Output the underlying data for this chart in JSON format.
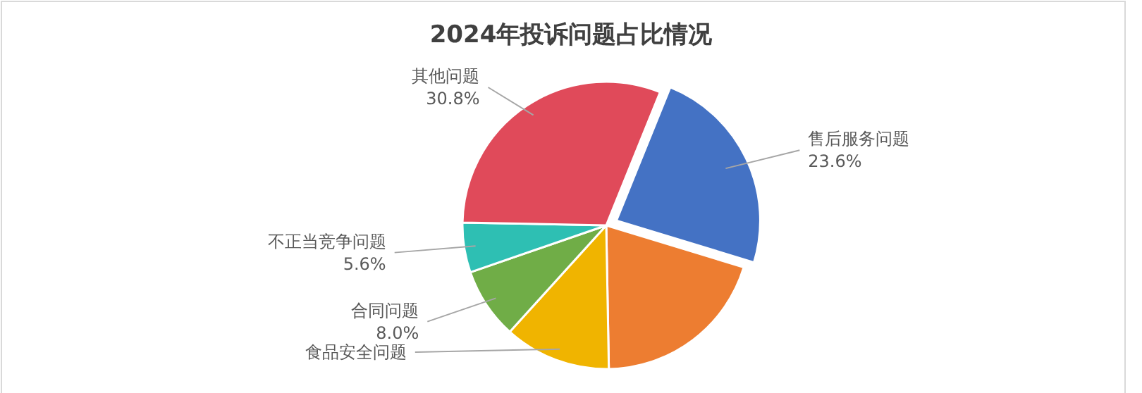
{
  "chart_data": {
    "type": "pie",
    "title": "2024年投诉问题占比情况",
    "categories": [
      "售后服务问题",
      null,
      "食品安全问题",
      "合同问题",
      "不正当竞争问题",
      "其他问题"
    ],
    "values": [
      23.6,
      20.0,
      12.0,
      8.0,
      5.6,
      30.8
    ],
    "value_labels": [
      "23.6%",
      null,
      null,
      "8.0%",
      "5.6%",
      "30.8%"
    ],
    "colors": [
      "#4472c4",
      "#ed7d31",
      "#f0b400",
      "#70ad47",
      "#2ebfb3",
      "#e04a5a"
    ]
  }
}
